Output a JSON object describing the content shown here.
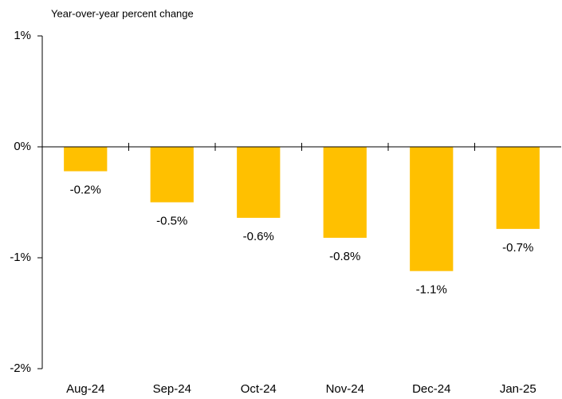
{
  "chart_data": {
    "type": "bar",
    "y_axis_label": "Year-over-year percent change",
    "categories": [
      "Aug-24",
      "Sep-24",
      "Oct-24",
      "Nov-24",
      "Dec-24",
      "Jan-25"
    ],
    "values": [
      -0.22,
      -0.5,
      -0.64,
      -0.82,
      -1.12,
      -0.74
    ],
    "value_labels": [
      "-0.2%",
      "-0.5%",
      "-0.6%",
      "-0.8%",
      "-1.1%",
      "-0.7%"
    ],
    "color": "#ffc000",
    "ylim": [
      -2,
      1
    ],
    "yticks": [
      {
        "value": -2,
        "label": "-2%"
      },
      {
        "value": -1,
        "label": "-1%"
      },
      {
        "value": 0,
        "label": "0%"
      },
      {
        "value": 1,
        "label": "1%"
      }
    ],
    "grid": false
  }
}
